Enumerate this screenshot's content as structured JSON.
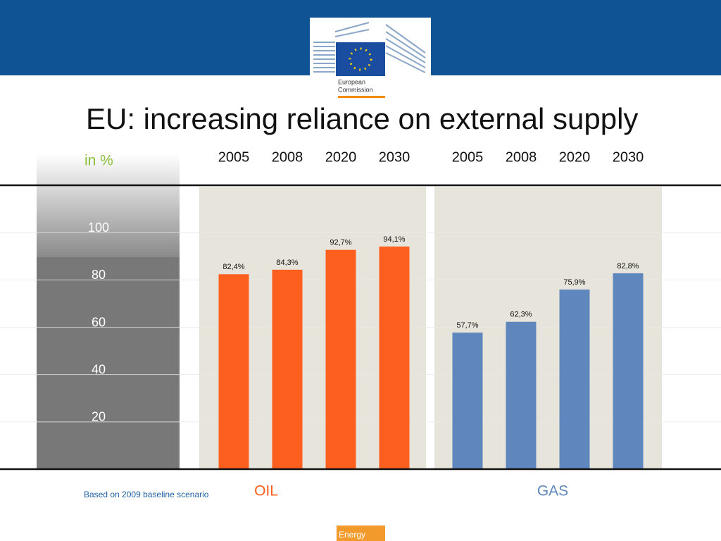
{
  "logo": [
    "European",
    "Commission"
  ],
  "footer": "Energy",
  "chart_data": {
    "type": "bar",
    "title": "EU: increasing reliance on external supply",
    "y_label": "in %",
    "note": "Based on 2009 baseline scenario",
    "categories": [
      "2005",
      "2008",
      "2020",
      "2030"
    ],
    "series": [
      {
        "name": "OIL",
        "color": "#fc5f1e",
        "values": [
          82.4,
          84.3,
          92.7,
          94.1
        ],
        "value_labels": [
          "82,4%",
          "84,3%",
          "92,7%",
          "94,1%"
        ]
      },
      {
        "name": "GAS",
        "color": "#5f87bd",
        "values": [
          57.7,
          62.3,
          75.9,
          82.8
        ],
        "value_labels": [
          "57,7%",
          "62,3%",
          "75,9%",
          "82,8%"
        ]
      }
    ],
    "ylim": [
      0,
      120
    ],
    "yticks": [
      20,
      40,
      60,
      80,
      100
    ],
    "grid": true
  }
}
